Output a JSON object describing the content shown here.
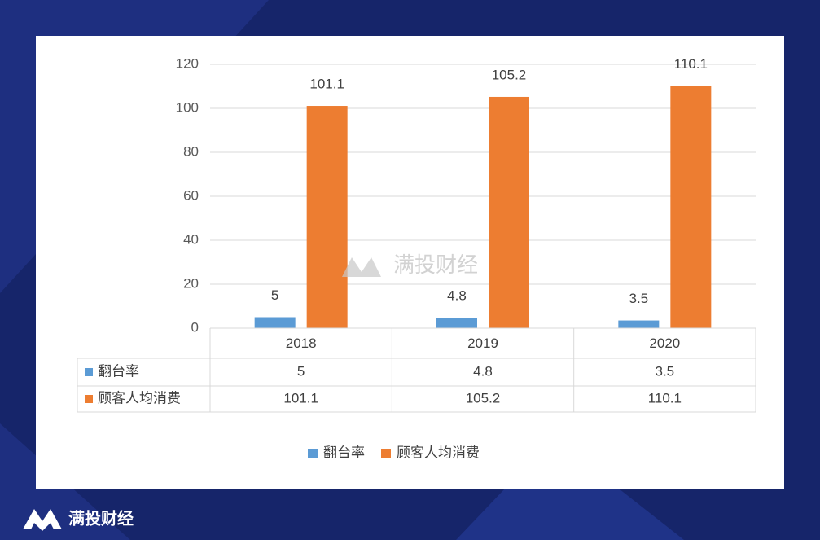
{
  "chart_data": {
    "type": "bar",
    "categories": [
      "2018",
      "2019",
      "2020"
    ],
    "series": [
      {
        "name": "翻台率",
        "color": "#5b9bd5",
        "values": [
          5,
          4.8,
          3.5
        ]
      },
      {
        "name": "顾客人均消费",
        "color": "#ed7d31",
        "values": [
          101.1,
          105.2,
          110.1
        ]
      }
    ],
    "ylim": [
      0,
      120
    ],
    "yticks": [
      0,
      20,
      40,
      60,
      80,
      100,
      120
    ],
    "grid": true,
    "legend": "bottom",
    "data_table": true
  },
  "watermark": "满投财经",
  "brand": "满投财经"
}
